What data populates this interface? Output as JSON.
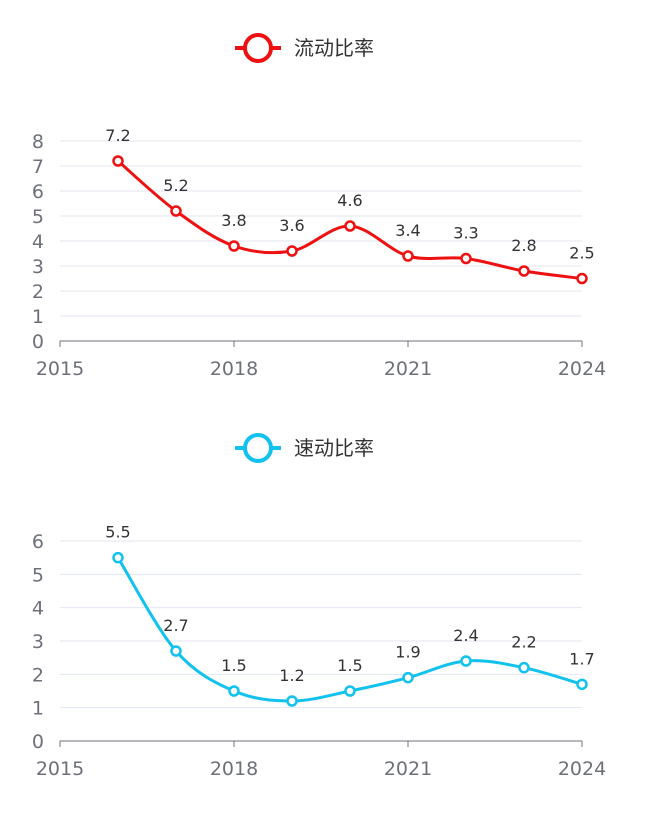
{
  "chart_data": [
    {
      "type": "line",
      "smooth": true,
      "title": "",
      "legend": "流动比率",
      "legend_position": "top-center",
      "color": "#ee1111",
      "x": [
        2016,
        2017,
        2018,
        2019,
        2020,
        2021,
        2022,
        2023,
        2024
      ],
      "values": [
        7.2,
        5.2,
        3.8,
        3.6,
        4.6,
        3.4,
        3.3,
        2.8,
        2.5
      ],
      "data_labels": [
        "7.2",
        "5.2",
        "3.8",
        "3.6",
        "4.6",
        "3.4",
        "3.3",
        "2.8",
        "2.5"
      ],
      "xlim": [
        2015,
        2024
      ],
      "xticks": [
        "2015",
        "2018",
        "2021",
        "2024"
      ],
      "ylim": [
        0,
        8
      ],
      "yticks": [
        "0",
        "1",
        "2",
        "3",
        "4",
        "5",
        "6",
        "7",
        "8"
      ],
      "grid": true
    },
    {
      "type": "line",
      "smooth": true,
      "title": "",
      "legend": "速动比率",
      "legend_position": "top-center",
      "color": "#11c2ee",
      "x": [
        2016,
        2017,
        2018,
        2019,
        2020,
        2021,
        2022,
        2023,
        2024
      ],
      "values": [
        5.5,
        2.7,
        1.5,
        1.2,
        1.5,
        1.9,
        2.4,
        2.2,
        1.7
      ],
      "data_labels": [
        "5.5",
        "2.7",
        "1.5",
        "1.2",
        "1.5",
        "1.9",
        "2.4",
        "2.2",
        "1.7"
      ],
      "xlim": [
        2015,
        2024
      ],
      "xticks": [
        "2015",
        "2018",
        "2021",
        "2024"
      ],
      "ylim": [
        0,
        6
      ],
      "yticks": [
        "0",
        "1",
        "2",
        "3",
        "4",
        "5",
        "6"
      ],
      "grid": true
    }
  ]
}
